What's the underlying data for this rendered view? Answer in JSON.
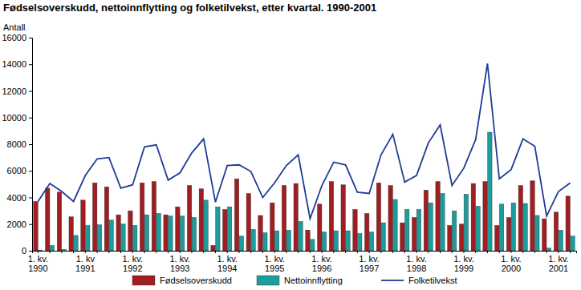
{
  "chart_data": {
    "type": "bar",
    "title": "Fødselsoverskudd, nettoinnflytting og folketilvekst, etter kvartal. 1990-2001",
    "y_label": "Antall",
    "categories": [
      "1. kv.\n1990",
      null,
      null,
      null,
      "1. kv\n1991",
      null,
      null,
      null,
      "1. kv.\n1992",
      null,
      null,
      null,
      "1. kv.\n1993",
      null,
      null,
      null,
      "1. kv.\n1994",
      null,
      null,
      null,
      "1. kv.\n1995",
      null,
      null,
      null,
      "1. kv.\n1996",
      null,
      null,
      null,
      "1. kv.\n1997",
      null,
      null,
      null,
      "1. kv.\n1998",
      null,
      null,
      null,
      "1. kv.\n1999",
      null,
      null,
      null,
      "1. kv.\n2000",
      null,
      null,
      null,
      "1. kv.\n2001",
      null
    ],
    "series": [
      {
        "name": "Fødselsoverskudd",
        "type": "bar",
        "color": "#a01d22",
        "values": [
          3700,
          4700,
          4400,
          2550,
          3800,
          5100,
          4800,
          2700,
          3000,
          5100,
          5200,
          2700,
          3300,
          4900,
          4650,
          400,
          3100,
          5400,
          4300,
          2650,
          3600,
          4900,
          5050,
          1550,
          3500,
          5200,
          4950,
          3100,
          2800,
          5100,
          4900,
          2100,
          2500,
          4550,
          5200,
          1900,
          2000,
          5050,
          5200,
          1900,
          2500,
          4900,
          5250,
          2400,
          2900,
          4100
        ]
      },
      {
        "name": "Nettoinnflytting",
        "type": "bar",
        "color": "#1c9c9c",
        "values": [
          50,
          400,
          100,
          1150,
          1900,
          1950,
          2300,
          2000,
          1900,
          2700,
          2800,
          2600,
          2600,
          2500,
          3800,
          3300,
          3300,
          1100,
          1600,
          1350,
          1500,
          1550,
          2200,
          850,
          1400,
          1500,
          1500,
          1300,
          1400,
          2100,
          3850,
          3100,
          3100,
          3600,
          4300,
          3000,
          4250,
          3350,
          8900,
          3500,
          3600,
          3550,
          2650,
          200,
          1550,
          1100
        ]
      },
      {
        "name": "Folketilvekst",
        "type": "line",
        "color": "#1f3c96",
        "values": [
          3700,
          5050,
          4450,
          3700,
          5650,
          6900,
          7000,
          4700,
          4950,
          7800,
          7950,
          5300,
          5850,
          7350,
          8400,
          3650,
          6400,
          6450,
          5950,
          4000,
          5100,
          6400,
          7200,
          2400,
          4900,
          6650,
          6450,
          4400,
          4300,
          7200,
          8750,
          5150,
          5650,
          8100,
          9450,
          4900,
          6200,
          8350,
          14050,
          5400,
          6100,
          8400,
          7850,
          2600,
          4450,
          5100
        ]
      }
    ],
    "ylim": [
      0,
      16000
    ],
    "yticks": [
      0,
      2000,
      4000,
      6000,
      8000,
      10000,
      12000,
      14000,
      16000
    ],
    "legend": "bottom"
  }
}
